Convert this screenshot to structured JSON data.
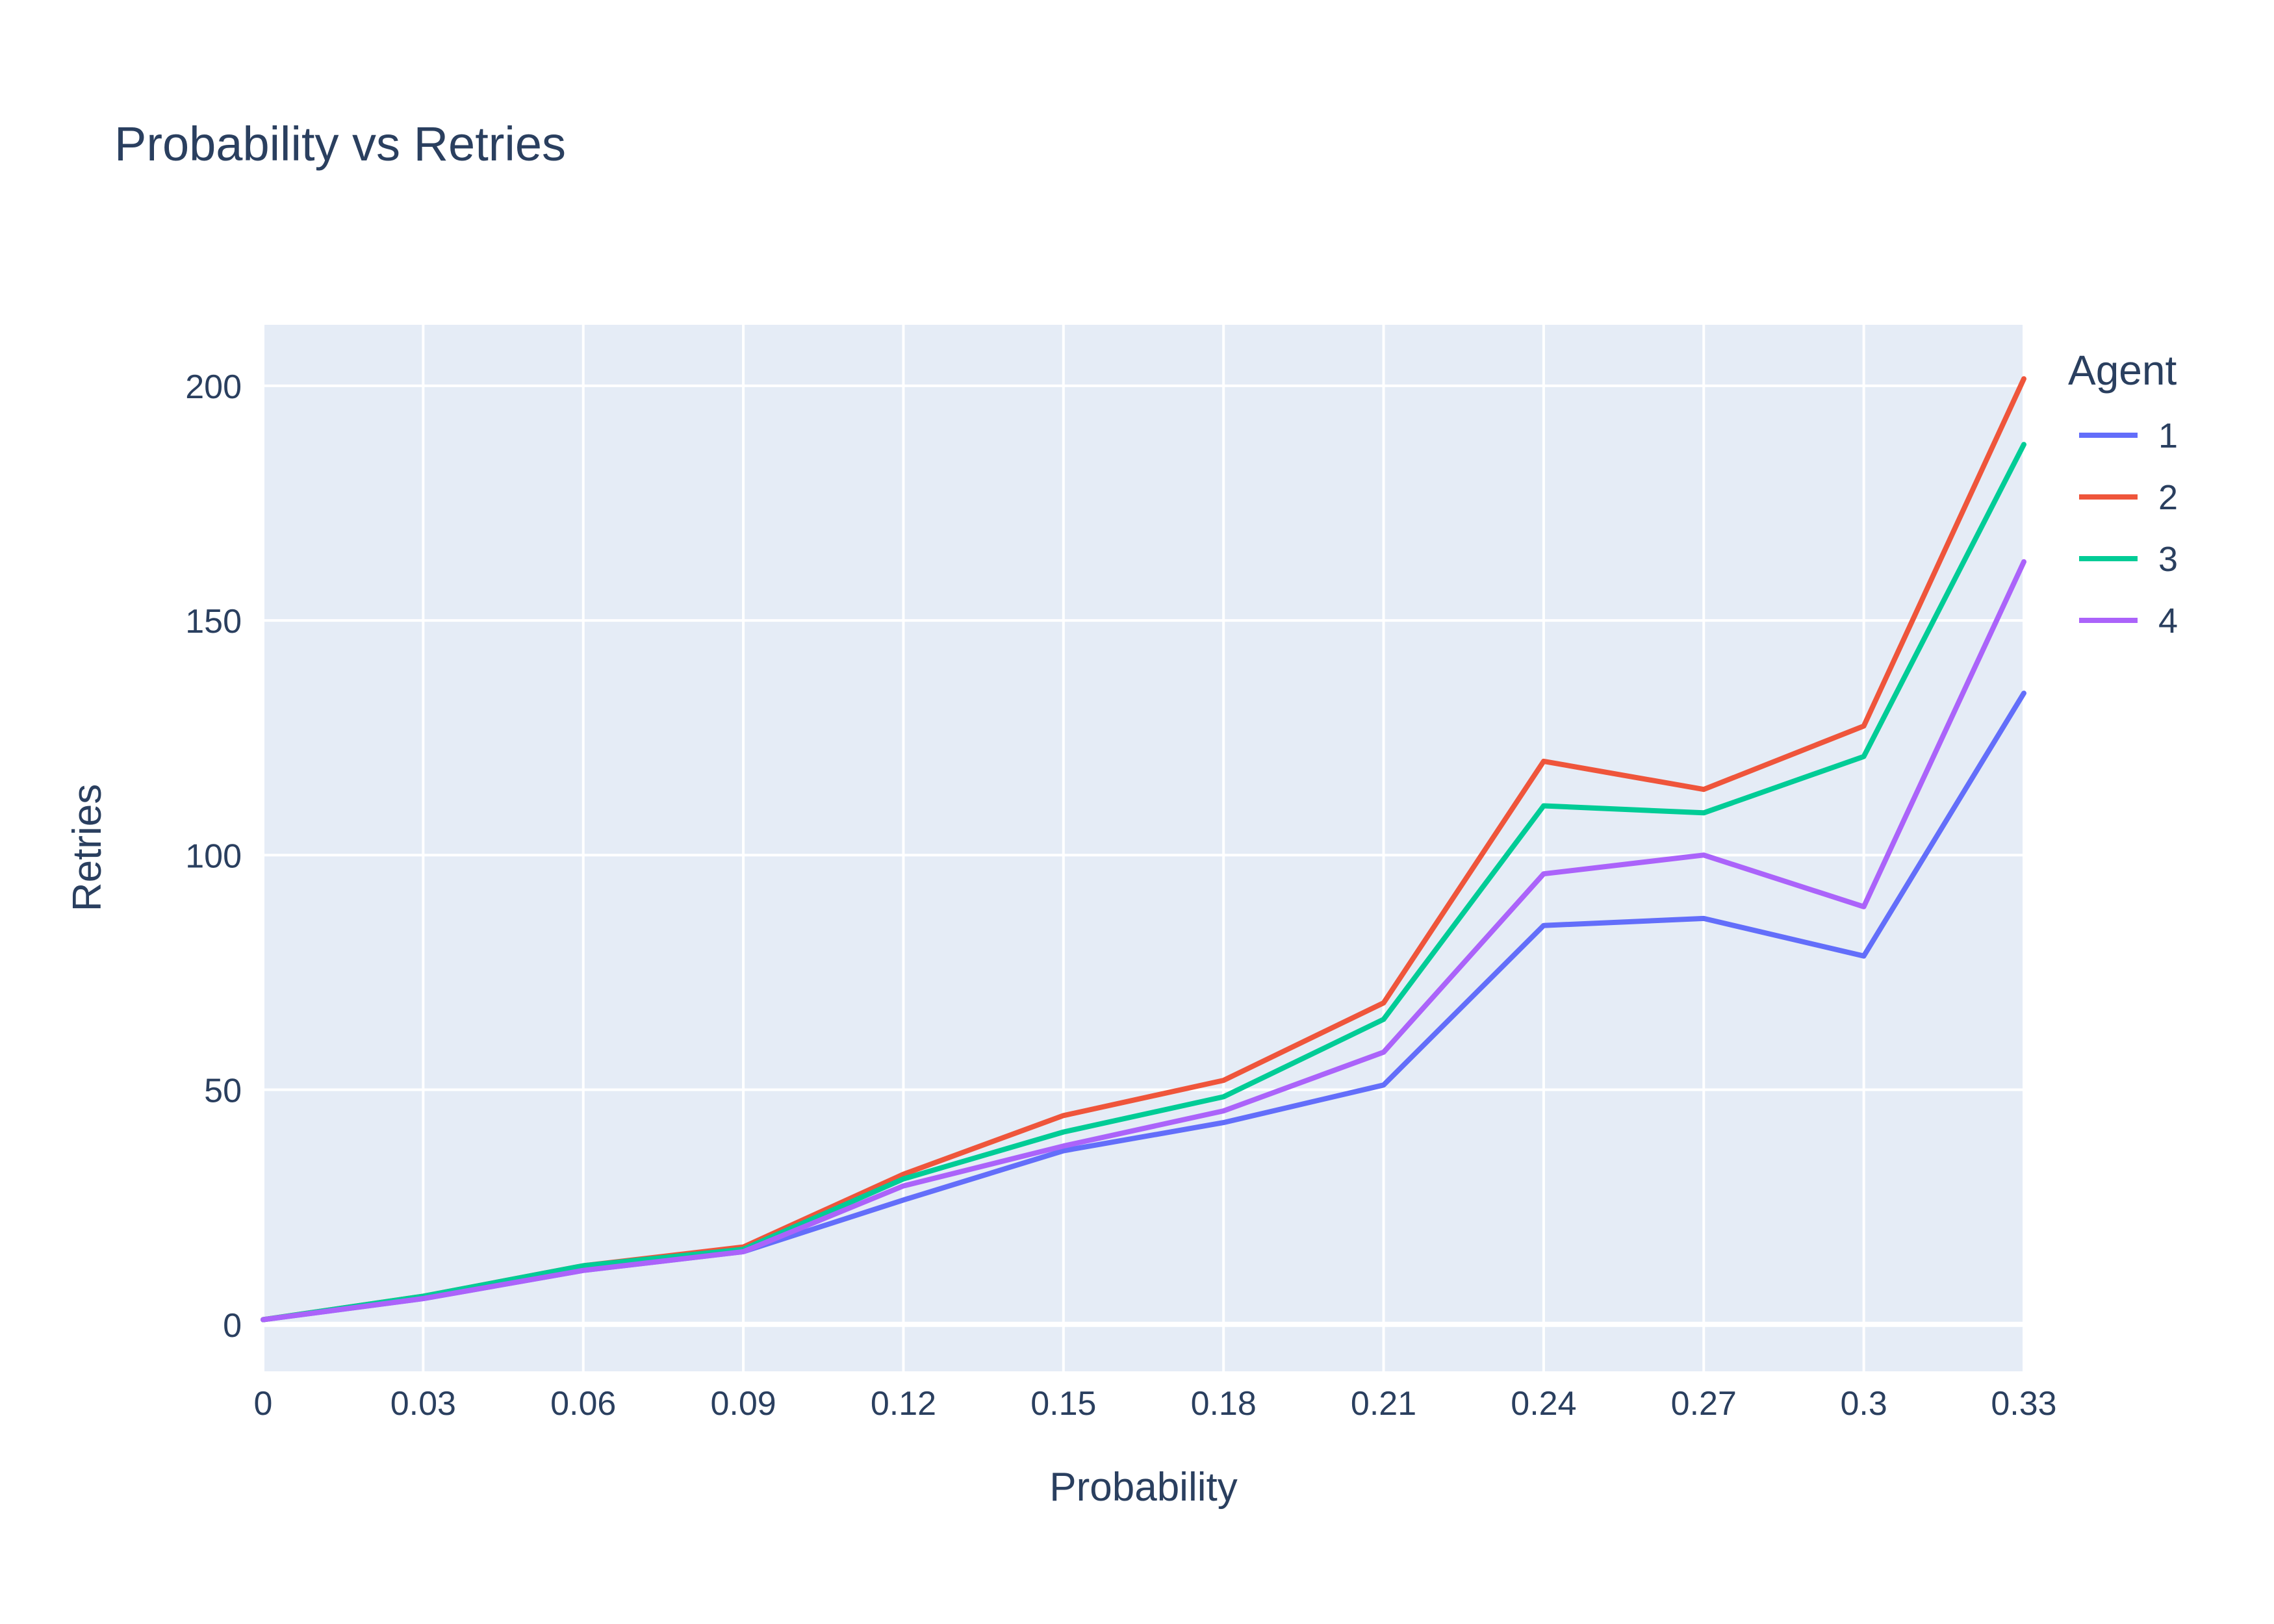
{
  "chart_data": {
    "type": "line",
    "title": "Probability vs Retries",
    "xlabel": "Probability",
    "ylabel": "Retries",
    "x": [
      0,
      0.03,
      0.06,
      0.09,
      0.12,
      0.15,
      0.18,
      0.21,
      0.24,
      0.27,
      0.3,
      0.33
    ],
    "x_tick_labels": [
      "0",
      "0.03",
      "0.06",
      "0.09",
      "0.12",
      "0.15",
      "0.18",
      "0.21",
      "0.24",
      "0.27",
      "0.3",
      "0.33"
    ],
    "xlim": [
      0,
      0.33
    ],
    "ylim": [
      -10,
      213
    ],
    "y_ticks": [
      0,
      50,
      100,
      150,
      200
    ],
    "y_tick_labels": [
      "0",
      "50",
      "100",
      "150",
      "200"
    ],
    "grid": true,
    "legend": {
      "title": "Agent",
      "placement": "right"
    },
    "series": [
      {
        "name": "1",
        "color": "#636efa",
        "values": [
          1,
          5.5,
          11.5,
          15.5,
          26.5,
          37,
          43,
          51,
          85,
          86.5,
          78.5,
          134.5
        ]
      },
      {
        "name": "2",
        "color": "#ef553b",
        "values": [
          1,
          6,
          12.5,
          16.5,
          32,
          44.5,
          52,
          68.5,
          120,
          114,
          127.5,
          201.5
        ]
      },
      {
        "name": "3",
        "color": "#00cc96",
        "values": [
          1,
          6,
          12.5,
          16,
          31,
          41,
          48.5,
          65,
          110.5,
          109,
          121,
          187.5
        ]
      },
      {
        "name": "4",
        "color": "#ab63fa",
        "values": [
          1,
          5.5,
          11.5,
          15.5,
          29.5,
          38,
          45.5,
          58,
          96,
          100,
          89,
          162.5
        ]
      }
    ]
  }
}
